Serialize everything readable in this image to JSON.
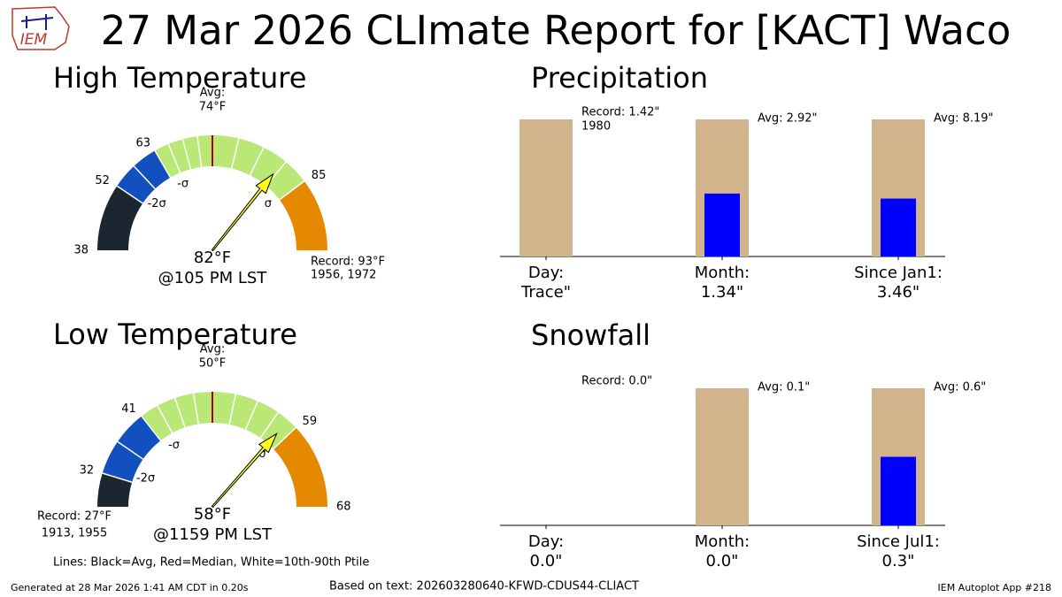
{
  "title": "27 Mar 2026 CLImate Report for [KACT] Waco",
  "logo_text": "IEM",
  "legend_note": "Lines: Black=Avg, Red=Median, White=10th-90th Ptile",
  "generated": "Generated at 28 Mar 2026 1:41 AM CDT in 0.20s",
  "source": "Based on text: 202603280640-KFWD-CDUS44-CLIACT",
  "app": "IEM Autoplot App #218",
  "chart_data": [
    {
      "type": "gauge",
      "title": "High Temperature",
      "value": 82,
      "value_label": "82°F",
      "time_label": "@105 PM LST",
      "edges": [
        38,
        52,
        63,
        85,
        93
      ],
      "colors": [
        "#1b2631",
        "#124fbf",
        "#b9e877",
        "#e58a00"
      ],
      "xticks": [
        38,
        52,
        63,
        85
      ],
      "sigma_labels": [
        "-2σ",
        "-σ",
        "σ"
      ],
      "avg": 74,
      "avg_label": [
        "Avg:",
        "74°F"
      ],
      "record": {
        "value": 93,
        "label": "Record: 93°F",
        "years": "1956, 1972"
      },
      "arrow_color": "#ffff1a"
    },
    {
      "type": "gauge",
      "title": "Low Temperature",
      "value": 58,
      "value_label": "58°F",
      "time_label": "@1159 PM LST",
      "edges": [
        27,
        32,
        41,
        59,
        68
      ],
      "colors": [
        "#1b2631",
        "#124fbf",
        "#b9e877",
        "#e58a00"
      ],
      "xticks": [
        32,
        41,
        59,
        68
      ],
      "sigma_labels": [
        "-2σ",
        "-σ",
        "σ"
      ],
      "avg": 50,
      "avg_label": [
        "Avg:",
        "50°F"
      ],
      "record": {
        "value": 27,
        "label": "Record: 27°F",
        "years": "1913, 1955"
      },
      "arrow_color": "#ffff1a"
    },
    {
      "type": "bar",
      "title": "Precipitation",
      "categories": [
        "Day:",
        "Month:",
        "Since Jan1:"
      ],
      "values": [
        0.0001,
        1.34,
        3.46
      ],
      "value_labels": [
        "Trace\"",
        "1.34\"",
        "3.46\""
      ],
      "color": "#0000ff",
      "reference": [
        1.42,
        2.92,
        8.19
      ],
      "reference_labels": [
        "Record: 1.42\"",
        "Avg: 2.92\"",
        "Avg: 8.19\""
      ],
      "record_year": "1980",
      "reference_color": "#d2b48c"
    },
    {
      "type": "bar",
      "title": "Snowfall",
      "categories": [
        "Day:",
        "Month:",
        "Since Jul1:"
      ],
      "values": [
        0.0,
        0.0,
        0.3
      ],
      "value_labels": [
        "0.0\"",
        "0.0\"",
        "0.3\""
      ],
      "color": "#0000ff",
      "reference": [
        0.0,
        0.1,
        0.6
      ],
      "reference_labels": [
        "Record: 0.0\"",
        "Avg: 0.1\"",
        "Avg: 0.6\""
      ],
      "reference_color": "#d2b48c"
    }
  ]
}
